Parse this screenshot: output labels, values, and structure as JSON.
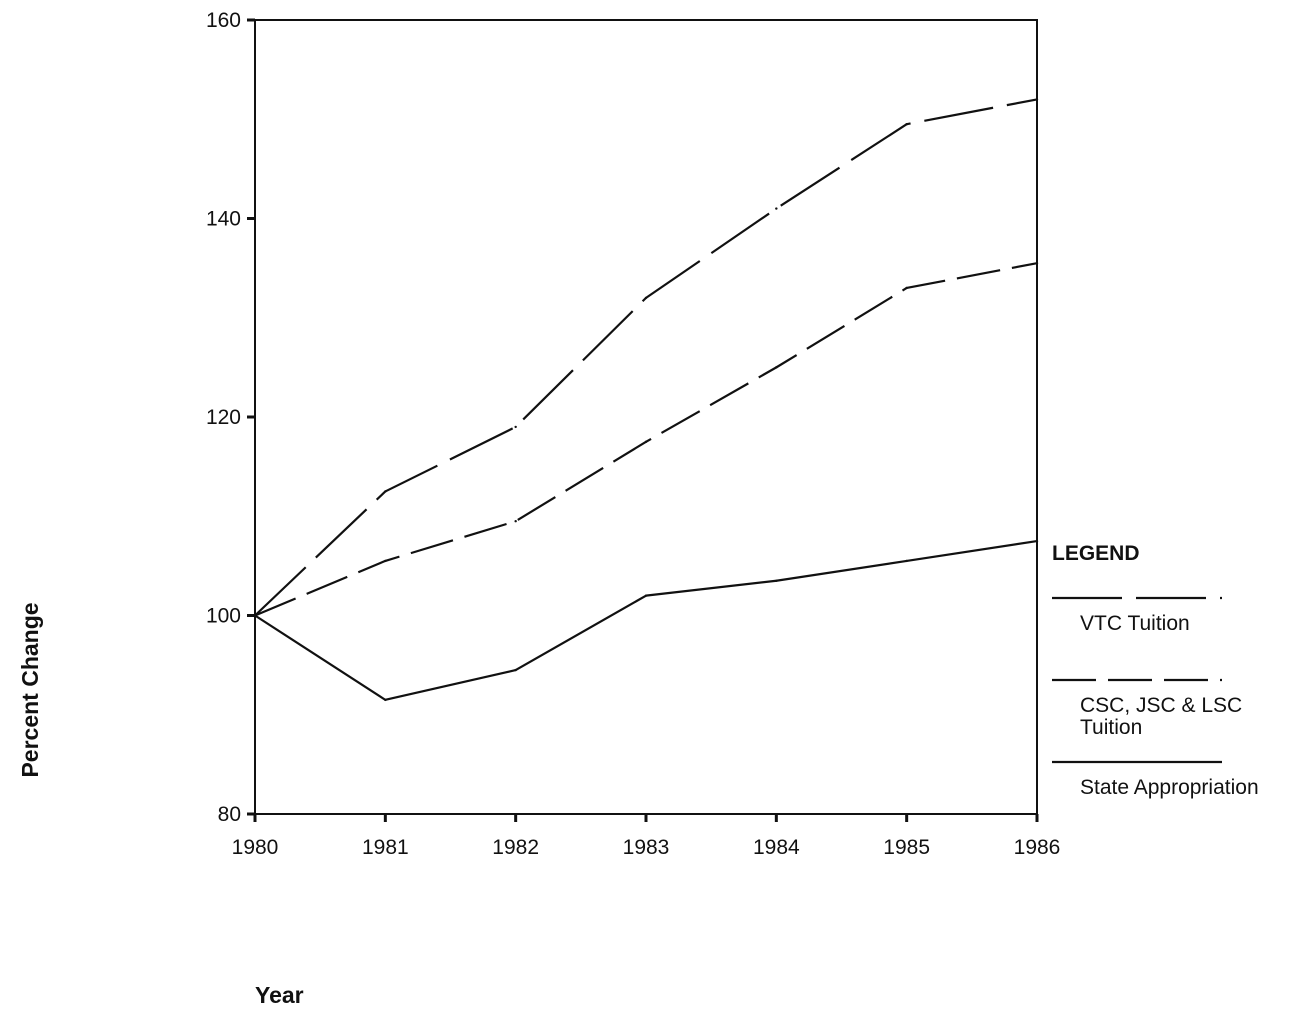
{
  "chart_data": {
    "type": "line",
    "title": "",
    "xlabel": "Year",
    "ylabel": "Percent Change",
    "x": [
      1980,
      1981,
      1982,
      1983,
      1984,
      1985,
      1986
    ],
    "xtick_labels": [
      "1980",
      "1981",
      "1982",
      "1983",
      "1984",
      "1985",
      "1986"
    ],
    "ylim": [
      80,
      160
    ],
    "yticks": [
      80,
      100,
      120,
      140,
      160
    ],
    "ytick_labels": [
      "80",
      "100",
      "120",
      "140",
      "160"
    ],
    "grid": false,
    "legend": {
      "title": "LEGEND",
      "placement": "right",
      "entries": [
        {
          "label_lines": [
            "VTC Tuition"
          ],
          "style": "long-dash"
        },
        {
          "label_lines": [
            "CSC, JSC & LSC",
            "Tuition"
          ],
          "style": "dash"
        },
        {
          "label_lines": [
            "State Appropriation"
          ],
          "style": "solid"
        }
      ]
    },
    "series": [
      {
        "name": "VTC Tuition",
        "style": "long-dash",
        "color": "#111111",
        "values": [
          100,
          112.5,
          119,
          132,
          141,
          149.5,
          152
        ]
      },
      {
        "name": "CSC, JSC & LSC Tuition",
        "style": "dash",
        "color": "#111111",
        "values": [
          100,
          105.5,
          109.5,
          117.5,
          125,
          133,
          135.5
        ]
      },
      {
        "name": "State Appropriation",
        "style": "solid",
        "color": "#111111",
        "values": [
          100,
          91.5,
          94.5,
          102,
          103.5,
          105.5,
          107.5
        ]
      }
    ]
  }
}
